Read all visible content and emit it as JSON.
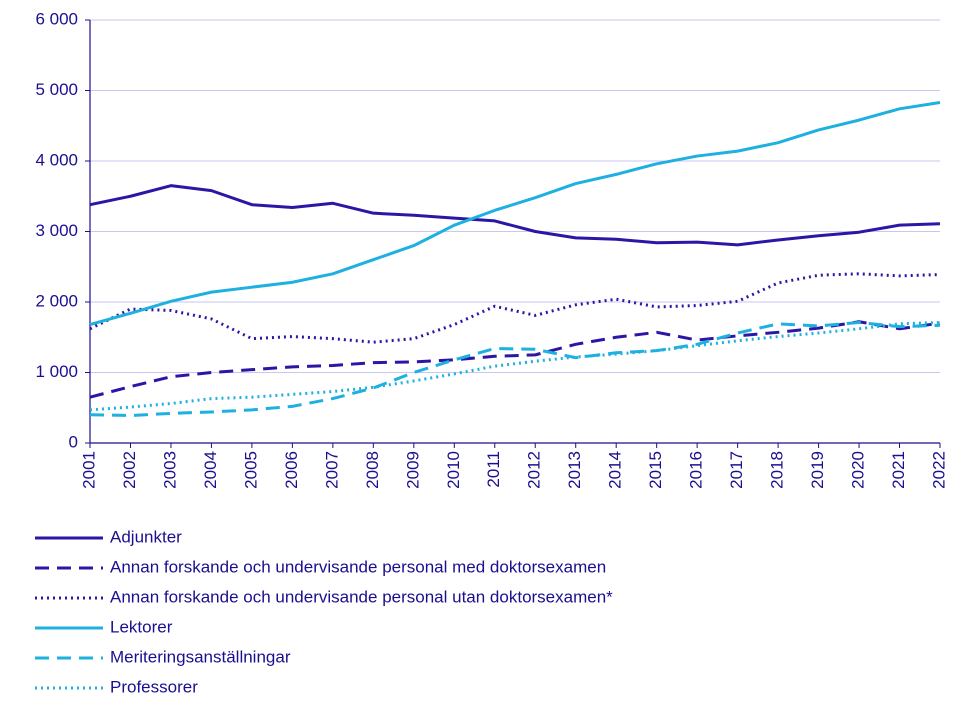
{
  "chart_data": {
    "type": "line",
    "x": [
      "2001",
      "2002",
      "2003",
      "2004",
      "2005",
      "2006",
      "2007",
      "2008",
      "2009",
      "2010",
      "2011",
      "2012",
      "2013",
      "2014",
      "2015",
      "2016",
      "2017",
      "2018",
      "2019",
      "2020",
      "2021",
      "2022"
    ],
    "ylim": [
      0,
      6000
    ],
    "yticks": [
      0,
      {
        "value": 1000,
        "label": "1 000"
      },
      {
        "value": 2000,
        "label": "2 000"
      },
      {
        "value": 3000,
        "label": "3 000"
      },
      {
        "value": 4000,
        "label": "4 000"
      },
      {
        "value": 5000,
        "label": "5 000"
      },
      {
        "value": 6000,
        "label": "6 000"
      }
    ],
    "grid": true,
    "series": [
      {
        "name": "Adjunkter",
        "color": "#2a17a6",
        "style": "solid",
        "values": [
          3380,
          3500,
          3650,
          3580,
          3380,
          3340,
          3400,
          3260,
          3230,
          3190,
          3150,
          3000,
          2910,
          2890,
          2840,
          2850,
          2810,
          2880,
          2940,
          2990,
          3090,
          3110
        ]
      },
      {
        "name": "Annan forskande och undervisande personal med doktorsexamen",
        "color": "#2a17a6",
        "style": "dashed",
        "values": [
          650,
          800,
          940,
          1000,
          1040,
          1080,
          1100,
          1140,
          1150,
          1180,
          1230,
          1250,
          1400,
          1500,
          1570,
          1460,
          1520,
          1570,
          1630,
          1720,
          1620,
          1700
        ]
      },
      {
        "name": "Annan forskande och undervisande personal utan doktorsexamen*",
        "color": "#2a17a6",
        "style": "dotted",
        "values": [
          1620,
          1900,
          1880,
          1760,
          1480,
          1510,
          1480,
          1430,
          1480,
          1680,
          1940,
          1810,
          1960,
          2040,
          1930,
          1950,
          2010,
          2270,
          2380,
          2400,
          2370,
          2390
        ]
      },
      {
        "name": "Lektorer",
        "color": "#1eb0e0",
        "style": "solid",
        "values": [
          1680,
          1840,
          2010,
          2140,
          2210,
          2280,
          2400,
          2600,
          2800,
          3090,
          3300,
          3480,
          3680,
          3810,
          3960,
          4070,
          4140,
          4260,
          4440,
          4580,
          4740,
          4830
        ]
      },
      {
        "name": "Meriteringsanställningar",
        "color": "#1eb0e0",
        "style": "dashed",
        "values": [
          400,
          390,
          420,
          440,
          470,
          520,
          630,
          780,
          1000,
          1180,
          1340,
          1330,
          1210,
          1280,
          1310,
          1400,
          1560,
          1690,
          1660,
          1710,
          1650,
          1670
        ]
      },
      {
        "name": "Professorer",
        "color": "#1eb0e0",
        "style": "dotted",
        "values": [
          470,
          510,
          560,
          630,
          650,
          690,
          730,
          790,
          880,
          980,
          1090,
          1160,
          1220,
          1260,
          1310,
          1380,
          1450,
          1510,
          1560,
          1620,
          1690,
          1710
        ]
      }
    ]
  }
}
